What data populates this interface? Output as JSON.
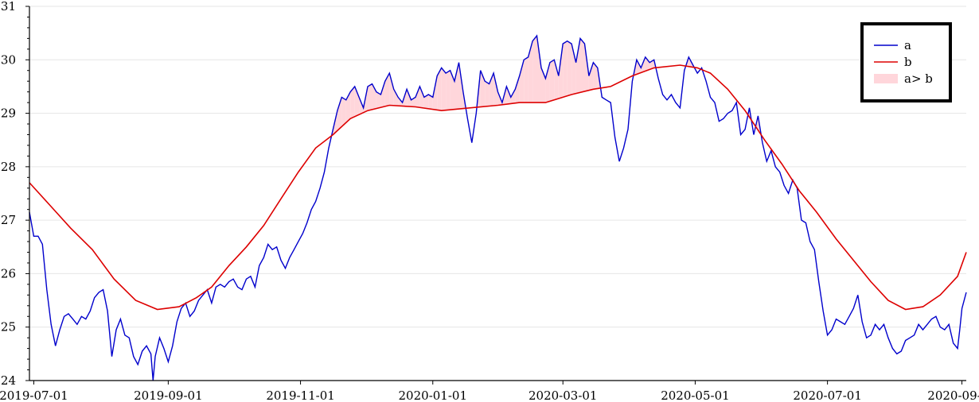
{
  "chart_data": {
    "type": "line",
    "title": "",
    "xlabel": "",
    "ylabel": "",
    "xlim": [
      "2019-06-29",
      "2020-09-03"
    ],
    "ylim": [
      24,
      31
    ],
    "x_ticks": [
      "2019-07-01",
      "2019-09-01",
      "2019-11-01",
      "2020-01-01",
      "2020-03-01",
      "2020-05-01",
      "2020-07-01",
      "2020-09-01"
    ],
    "y_ticks": [
      24,
      25,
      26,
      27,
      28,
      29,
      30,
      31
    ],
    "grid": "horizontal",
    "legend_position": "top-right",
    "legend": [
      "a",
      "b",
      "a> b"
    ],
    "colors": {
      "a": "#0000cc",
      "b": "#dd0000",
      "fill": "#ffd6db"
    },
    "series": [
      {
        "name": "a",
        "points": [
          [
            "2019-06-29",
            27.15
          ],
          [
            "2019-07-01",
            26.7
          ],
          [
            "2019-07-03",
            26.7
          ],
          [
            "2019-07-05",
            26.55
          ],
          [
            "2019-07-07",
            25.7
          ],
          [
            "2019-07-09",
            25.05
          ],
          [
            "2019-07-11",
            24.65
          ],
          [
            "2019-07-13",
            24.95
          ],
          [
            "2019-07-15",
            25.2
          ],
          [
            "2019-07-17",
            25.25
          ],
          [
            "2019-07-19",
            25.15
          ],
          [
            "2019-07-21",
            25.05
          ],
          [
            "2019-07-23",
            25.2
          ],
          [
            "2019-07-25",
            25.15
          ],
          [
            "2019-07-27",
            25.3
          ],
          [
            "2019-07-29",
            25.55
          ],
          [
            "2019-07-31",
            25.65
          ],
          [
            "2019-08-02",
            25.7
          ],
          [
            "2019-08-04",
            25.3
          ],
          [
            "2019-08-06",
            24.45
          ],
          [
            "2019-08-08",
            24.95
          ],
          [
            "2019-08-10",
            25.15
          ],
          [
            "2019-08-12",
            24.85
          ],
          [
            "2019-08-14",
            24.8
          ],
          [
            "2019-08-16",
            24.45
          ],
          [
            "2019-08-18",
            24.3
          ],
          [
            "2019-08-20",
            24.55
          ],
          [
            "2019-08-22",
            24.65
          ],
          [
            "2019-08-24",
            24.5
          ],
          [
            "2019-08-25",
            24.0
          ],
          [
            "2019-08-26",
            24.45
          ],
          [
            "2019-08-28",
            24.8
          ],
          [
            "2019-08-30",
            24.6
          ],
          [
            "2019-09-01",
            24.35
          ],
          [
            "2019-09-03",
            24.65
          ],
          [
            "2019-09-05",
            25.1
          ],
          [
            "2019-09-07",
            25.35
          ],
          [
            "2019-09-09",
            25.45
          ],
          [
            "2019-09-11",
            25.2
          ],
          [
            "2019-09-13",
            25.3
          ],
          [
            "2019-09-15",
            25.5
          ],
          [
            "2019-09-17",
            25.6
          ],
          [
            "2019-09-19",
            25.7
          ],
          [
            "2019-09-21",
            25.45
          ],
          [
            "2019-09-23",
            25.75
          ],
          [
            "2019-09-25",
            25.8
          ],
          [
            "2019-09-27",
            25.75
          ],
          [
            "2019-09-29",
            25.85
          ],
          [
            "2019-10-01",
            25.9
          ],
          [
            "2019-10-03",
            25.75
          ],
          [
            "2019-10-05",
            25.7
          ],
          [
            "2019-10-07",
            25.9
          ],
          [
            "2019-10-09",
            25.95
          ],
          [
            "2019-10-11",
            25.75
          ],
          [
            "2019-10-13",
            26.15
          ],
          [
            "2019-10-15",
            26.3
          ],
          [
            "2019-10-17",
            26.55
          ],
          [
            "2019-10-19",
            26.45
          ],
          [
            "2019-10-21",
            26.5
          ],
          [
            "2019-10-23",
            26.25
          ],
          [
            "2019-10-25",
            26.1
          ],
          [
            "2019-10-27",
            26.3
          ],
          [
            "2019-10-29",
            26.45
          ],
          [
            "2019-10-31",
            26.6
          ],
          [
            "2019-11-02",
            26.75
          ],
          [
            "2019-11-04",
            26.95
          ],
          [
            "2019-11-06",
            27.2
          ],
          [
            "2019-11-08",
            27.35
          ],
          [
            "2019-11-10",
            27.6
          ],
          [
            "2019-11-12",
            27.9
          ],
          [
            "2019-11-14",
            28.35
          ],
          [
            "2019-11-16",
            28.7
          ],
          [
            "2019-11-18",
            29.05
          ],
          [
            "2019-11-20",
            29.3
          ],
          [
            "2019-11-22",
            29.25
          ],
          [
            "2019-11-24",
            29.4
          ],
          [
            "2019-11-26",
            29.5
          ],
          [
            "2019-11-28",
            29.3
          ],
          [
            "2019-11-30",
            29.1
          ],
          [
            "2019-12-02",
            29.5
          ],
          [
            "2019-12-04",
            29.55
          ],
          [
            "2019-12-06",
            29.4
          ],
          [
            "2019-12-08",
            29.35
          ],
          [
            "2019-12-10",
            29.6
          ],
          [
            "2019-12-12",
            29.75
          ],
          [
            "2019-12-14",
            29.45
          ],
          [
            "2019-12-16",
            29.3
          ],
          [
            "2019-12-18",
            29.2
          ],
          [
            "2019-12-20",
            29.45
          ],
          [
            "2019-12-22",
            29.25
          ],
          [
            "2019-12-24",
            29.3
          ],
          [
            "2019-12-26",
            29.5
          ],
          [
            "2019-12-28",
            29.3
          ],
          [
            "2019-12-30",
            29.35
          ],
          [
            "2020-01-01",
            29.3
          ],
          [
            "2020-01-03",
            29.7
          ],
          [
            "2020-01-05",
            29.85
          ],
          [
            "2020-01-07",
            29.75
          ],
          [
            "2020-01-09",
            29.8
          ],
          [
            "2020-01-11",
            29.6
          ],
          [
            "2020-01-13",
            29.95
          ],
          [
            "2020-01-15",
            29.4
          ],
          [
            "2020-01-17",
            28.9
          ],
          [
            "2020-01-19",
            28.45
          ],
          [
            "2020-01-21",
            29.0
          ],
          [
            "2020-01-23",
            29.8
          ],
          [
            "2020-01-25",
            29.6
          ],
          [
            "2020-01-27",
            29.55
          ],
          [
            "2020-01-29",
            29.75
          ],
          [
            "2020-01-31",
            29.4
          ],
          [
            "2020-02-02",
            29.2
          ],
          [
            "2020-02-04",
            29.5
          ],
          [
            "2020-02-06",
            29.3
          ],
          [
            "2020-02-08",
            29.45
          ],
          [
            "2020-02-10",
            29.7
          ],
          [
            "2020-02-12",
            30.0
          ],
          [
            "2020-02-14",
            30.05
          ],
          [
            "2020-02-16",
            30.35
          ],
          [
            "2020-02-18",
            30.45
          ],
          [
            "2020-02-20",
            29.85
          ],
          [
            "2020-02-22",
            29.65
          ],
          [
            "2020-02-24",
            29.95
          ],
          [
            "2020-02-26",
            30.0
          ],
          [
            "2020-02-28",
            29.7
          ],
          [
            "2020-03-01",
            30.3
          ],
          [
            "2020-03-03",
            30.35
          ],
          [
            "2020-03-05",
            30.3
          ],
          [
            "2020-03-07",
            29.95
          ],
          [
            "2020-03-09",
            30.4
          ],
          [
            "2020-03-11",
            30.3
          ],
          [
            "2020-03-13",
            29.7
          ],
          [
            "2020-03-15",
            29.95
          ],
          [
            "2020-03-17",
            29.85
          ],
          [
            "2020-03-19",
            29.3
          ],
          [
            "2020-03-21",
            29.25
          ],
          [
            "2020-03-23",
            29.2
          ],
          [
            "2020-03-25",
            28.55
          ],
          [
            "2020-03-27",
            28.1
          ],
          [
            "2020-03-29",
            28.35
          ],
          [
            "2020-03-31",
            28.7
          ],
          [
            "2020-04-02",
            29.6
          ],
          [
            "2020-04-04",
            30.0
          ],
          [
            "2020-04-06",
            29.85
          ],
          [
            "2020-04-08",
            30.05
          ],
          [
            "2020-04-10",
            29.95
          ],
          [
            "2020-04-12",
            30.0
          ],
          [
            "2020-04-14",
            29.65
          ],
          [
            "2020-04-16",
            29.35
          ],
          [
            "2020-04-18",
            29.25
          ],
          [
            "2020-04-20",
            29.35
          ],
          [
            "2020-04-22",
            29.2
          ],
          [
            "2020-04-24",
            29.1
          ],
          [
            "2020-04-26",
            29.8
          ],
          [
            "2020-04-28",
            30.05
          ],
          [
            "2020-04-30",
            29.9
          ],
          [
            "2020-05-02",
            29.75
          ],
          [
            "2020-05-04",
            29.85
          ],
          [
            "2020-05-06",
            29.6
          ],
          [
            "2020-05-08",
            29.3
          ],
          [
            "2020-05-10",
            29.2
          ],
          [
            "2020-05-12",
            28.85
          ],
          [
            "2020-05-14",
            28.9
          ],
          [
            "2020-05-16",
            29.0
          ],
          [
            "2020-05-18",
            29.05
          ],
          [
            "2020-05-20",
            29.2
          ],
          [
            "2020-05-22",
            28.6
          ],
          [
            "2020-05-24",
            28.7
          ],
          [
            "2020-05-26",
            29.1
          ],
          [
            "2020-05-28",
            28.6
          ],
          [
            "2020-05-30",
            28.95
          ],
          [
            "2020-06-01",
            28.45
          ],
          [
            "2020-06-03",
            28.1
          ],
          [
            "2020-06-05",
            28.3
          ],
          [
            "2020-06-07",
            28.0
          ],
          [
            "2020-06-09",
            27.9
          ],
          [
            "2020-06-11",
            27.65
          ],
          [
            "2020-06-13",
            27.5
          ],
          [
            "2020-06-15",
            27.75
          ],
          [
            "2020-06-17",
            27.6
          ],
          [
            "2020-06-19",
            27.0
          ],
          [
            "2020-06-21",
            26.95
          ],
          [
            "2020-06-23",
            26.6
          ],
          [
            "2020-06-25",
            26.45
          ],
          [
            "2020-06-27",
            25.85
          ],
          [
            "2020-06-29",
            25.3
          ],
          [
            "2020-07-01",
            24.85
          ],
          [
            "2020-07-03",
            24.95
          ],
          [
            "2020-07-05",
            25.15
          ],
          [
            "2020-07-07",
            25.1
          ],
          [
            "2020-07-09",
            25.05
          ],
          [
            "2020-07-11",
            25.2
          ],
          [
            "2020-07-13",
            25.35
          ],
          [
            "2020-07-15",
            25.6
          ],
          [
            "2020-07-17",
            25.1
          ],
          [
            "2020-07-19",
            24.8
          ],
          [
            "2020-07-21",
            24.85
          ],
          [
            "2020-07-23",
            25.05
          ],
          [
            "2020-07-25",
            24.95
          ],
          [
            "2020-07-27",
            25.05
          ],
          [
            "2020-07-29",
            24.8
          ],
          [
            "2020-07-31",
            24.6
          ],
          [
            "2020-08-02",
            24.5
          ],
          [
            "2020-08-04",
            24.55
          ],
          [
            "2020-08-06",
            24.75
          ],
          [
            "2020-08-08",
            24.8
          ],
          [
            "2020-08-10",
            24.85
          ],
          [
            "2020-08-12",
            25.05
          ],
          [
            "2020-08-14",
            24.95
          ],
          [
            "2020-08-16",
            25.05
          ],
          [
            "2020-08-18",
            25.15
          ],
          [
            "2020-08-20",
            25.2
          ],
          [
            "2020-08-22",
            25.0
          ],
          [
            "2020-08-24",
            24.95
          ],
          [
            "2020-08-26",
            25.05
          ],
          [
            "2020-08-28",
            24.7
          ],
          [
            "2020-08-30",
            24.6
          ],
          [
            "2020-08-31",
            24.95
          ],
          [
            "2020-09-01",
            25.35
          ],
          [
            "2020-09-03",
            25.65
          ]
        ]
      },
      {
        "name": "b",
        "points": [
          [
            "2019-06-29",
            27.7
          ],
          [
            "2019-07-08",
            27.3
          ],
          [
            "2019-07-18",
            26.85
          ],
          [
            "2019-07-28",
            26.45
          ],
          [
            "2019-08-07",
            25.9
          ],
          [
            "2019-08-17",
            25.5
          ],
          [
            "2019-08-27",
            25.33
          ],
          [
            "2019-09-06",
            25.38
          ],
          [
            "2019-09-14",
            25.55
          ],
          [
            "2019-09-21",
            25.75
          ],
          [
            "2019-09-29",
            26.15
          ],
          [
            "2019-10-07",
            26.5
          ],
          [
            "2019-10-15",
            26.9
          ],
          [
            "2019-10-23",
            27.4
          ],
          [
            "2019-10-31",
            27.9
          ],
          [
            "2019-11-08",
            28.35
          ],
          [
            "2019-11-16",
            28.6
          ],
          [
            "2019-11-24",
            28.9
          ],
          [
            "2019-12-02",
            29.05
          ],
          [
            "2019-12-12",
            29.15
          ],
          [
            "2019-12-24",
            29.12
          ],
          [
            "2020-01-05",
            29.05
          ],
          [
            "2020-01-18",
            29.1
          ],
          [
            "2020-01-31",
            29.15
          ],
          [
            "2020-02-10",
            29.2
          ],
          [
            "2020-02-22",
            29.2
          ],
          [
            "2020-03-05",
            29.35
          ],
          [
            "2020-03-15",
            29.45
          ],
          [
            "2020-03-23",
            29.5
          ],
          [
            "2020-04-02",
            29.7
          ],
          [
            "2020-04-12",
            29.85
          ],
          [
            "2020-04-24",
            29.9
          ],
          [
            "2020-05-02",
            29.85
          ],
          [
            "2020-05-08",
            29.75
          ],
          [
            "2020-05-16",
            29.45
          ],
          [
            "2020-05-24",
            29.05
          ],
          [
            "2020-06-02",
            28.5
          ],
          [
            "2020-06-10",
            28.05
          ],
          [
            "2020-06-18",
            27.55
          ],
          [
            "2020-06-26",
            27.15
          ],
          [
            "2020-07-05",
            26.65
          ],
          [
            "2020-07-13",
            26.25
          ],
          [
            "2020-07-21",
            25.85
          ],
          [
            "2020-07-29",
            25.5
          ],
          [
            "2020-08-06",
            25.33
          ],
          [
            "2020-08-14",
            25.38
          ],
          [
            "2020-08-22",
            25.6
          ],
          [
            "2020-08-30",
            25.95
          ],
          [
            "2020-09-03",
            26.4
          ]
        ]
      }
    ]
  }
}
